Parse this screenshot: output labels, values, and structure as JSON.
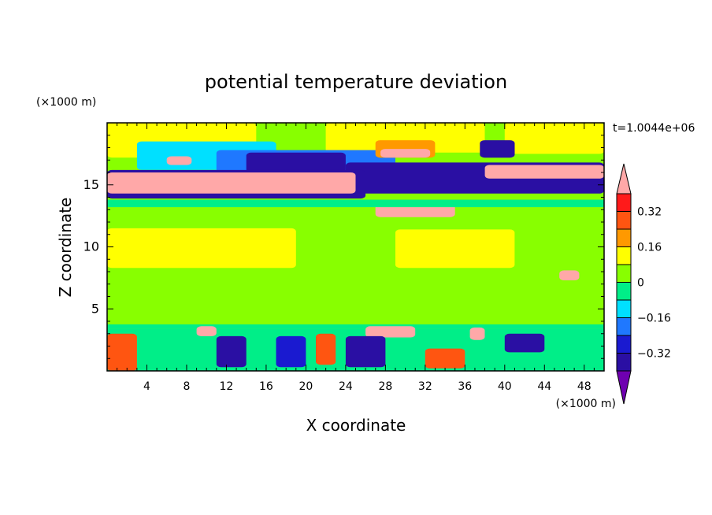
{
  "chart_data": {
    "type": "heatmap",
    "title": "potential temperature deviation",
    "xlabel": "X coordinate",
    "ylabel": "Z coordinate",
    "x_unit": "(×1000 m)",
    "y_unit": "(×1000 m)",
    "time_label": "t=1.0044e+06",
    "xlim": [
      0,
      50
    ],
    "ylim": [
      0,
      20
    ],
    "x_ticks": [
      4,
      8,
      12,
      16,
      20,
      24,
      28,
      32,
      36,
      40,
      44,
      48
    ],
    "y_ticks": [
      5,
      10,
      15
    ],
    "colorbar": {
      "levels": [
        -0.4,
        -0.32,
        -0.24,
        -0.16,
        -0.08,
        0,
        0.08,
        0.16,
        0.24,
        0.32,
        0.4
      ],
      "tick_values": [
        -0.32,
        -0.16,
        0,
        0.16,
        0.32
      ],
      "tick_labels": [
        "-0.32",
        "-0.16",
        "0",
        "0.16",
        "0.32"
      ],
      "colors": [
        "#6f00b0",
        "#2a0fa3",
        "#1a1ad0",
        "#1f78ff",
        "#00e0ff",
        "#00ee88",
        "#88ff00",
        "#ffff00",
        "#ff9900",
        "#ff5511",
        "#ff1a1a",
        "#ffa8a8"
      ],
      "extend": "both"
    },
    "field_regions": [
      {
        "x": [
          0,
          50
        ],
        "y": [
          0,
          20
        ],
        "value": 0.02
      },
      {
        "x": [
          0,
          15
        ],
        "y": [
          17.2,
          20
        ],
        "value": 0.1
      },
      {
        "x": [
          22,
          38
        ],
        "y": [
          17.6,
          20
        ],
        "value": 0.1
      },
      {
        "x": [
          40,
          50
        ],
        "y": [
          17.5,
          20
        ],
        "value": 0.1
      },
      {
        "x": [
          3,
          17
        ],
        "y": [
          16.2,
          18.5
        ],
        "value": -0.1
      },
      {
        "x": [
          11,
          29
        ],
        "y": [
          15.4,
          17.8
        ],
        "value": -0.2
      },
      {
        "x": [
          14,
          24
        ],
        "y": [
          16,
          17.6
        ],
        "value": -0.36
      },
      {
        "x": [
          24,
          50
        ],
        "y": [
          14.3,
          16.8
        ],
        "value": -0.36
      },
      {
        "x": [
          27,
          33
        ],
        "y": [
          17.2,
          18.6
        ],
        "value": 0.2
      },
      {
        "x": [
          27.5,
          32.5
        ],
        "y": [
          17.2,
          17.9
        ],
        "value": 0.42
      },
      {
        "x": [
          6,
          8.5
        ],
        "y": [
          16.6,
          17.3
        ],
        "value": 0.42
      },
      {
        "x": [
          37.5,
          41
        ],
        "y": [
          17.2,
          18.6
        ],
        "value": -0.36
      },
      {
        "x": [
          0,
          26
        ],
        "y": [
          13.9,
          16.2
        ],
        "value": -0.36
      },
      {
        "x": [
          0,
          25
        ],
        "y": [
          14.3,
          16
        ],
        "value": 0.42
      },
      {
        "x": [
          27,
          35
        ],
        "y": [
          12.4,
          13.7
        ],
        "value": 0.42
      },
      {
        "x": [
          38,
          50
        ],
        "y": [
          15.5,
          16.6
        ],
        "value": 0.42
      },
      {
        "x": [
          0,
          50
        ],
        "y": [
          13.2,
          13.8
        ],
        "value": -0.08
      },
      {
        "x": [
          0,
          19
        ],
        "y": [
          8.3,
          11.5
        ],
        "value": 0.1
      },
      {
        "x": [
          29,
          41
        ],
        "y": [
          8.3,
          11.4
        ],
        "value": 0.1
      },
      {
        "x": [
          0,
          50
        ],
        "y": [
          3.8,
          8
        ],
        "value": 0.06
      },
      {
        "x": [
          0,
          50
        ],
        "y": [
          3.4,
          3.75
        ],
        "value": -0.08
      },
      {
        "x": [
          0,
          50
        ],
        "y": [
          0,
          3.4
        ],
        "value": -0.06
      },
      {
        "x": [
          0,
          3
        ],
        "y": [
          0,
          3
        ],
        "value": 0.3
      },
      {
        "x": [
          9,
          11
        ],
        "y": [
          2.8,
          3.6
        ],
        "value": 0.42
      },
      {
        "x": [
          26,
          31
        ],
        "y": [
          2.7,
          3.6
        ],
        "value": 0.42
      },
      {
        "x": [
          36.5,
          38
        ],
        "y": [
          2.5,
          3.5
        ],
        "value": 0.42
      },
      {
        "x": [
          45.5,
          47.5
        ],
        "y": [
          7.3,
          8.1
        ],
        "value": 0.42
      },
      {
        "x": [
          11,
          14
        ],
        "y": [
          0.3,
          2.8
        ],
        "value": -0.36
      },
      {
        "x": [
          17,
          20
        ],
        "y": [
          0.3,
          2.8
        ],
        "value": -0.3
      },
      {
        "x": [
          21,
          23
        ],
        "y": [
          0.5,
          3
        ],
        "value": 0.3
      },
      {
        "x": [
          24,
          28
        ],
        "y": [
          0.3,
          2.8
        ],
        "value": -0.36
      },
      {
        "x": [
          32,
          36
        ],
        "y": [
          0.2,
          1.8
        ],
        "value": 0.3
      },
      {
        "x": [
          40,
          44
        ],
        "y": [
          1.5,
          3
        ],
        "value": -0.36
      }
    ]
  }
}
